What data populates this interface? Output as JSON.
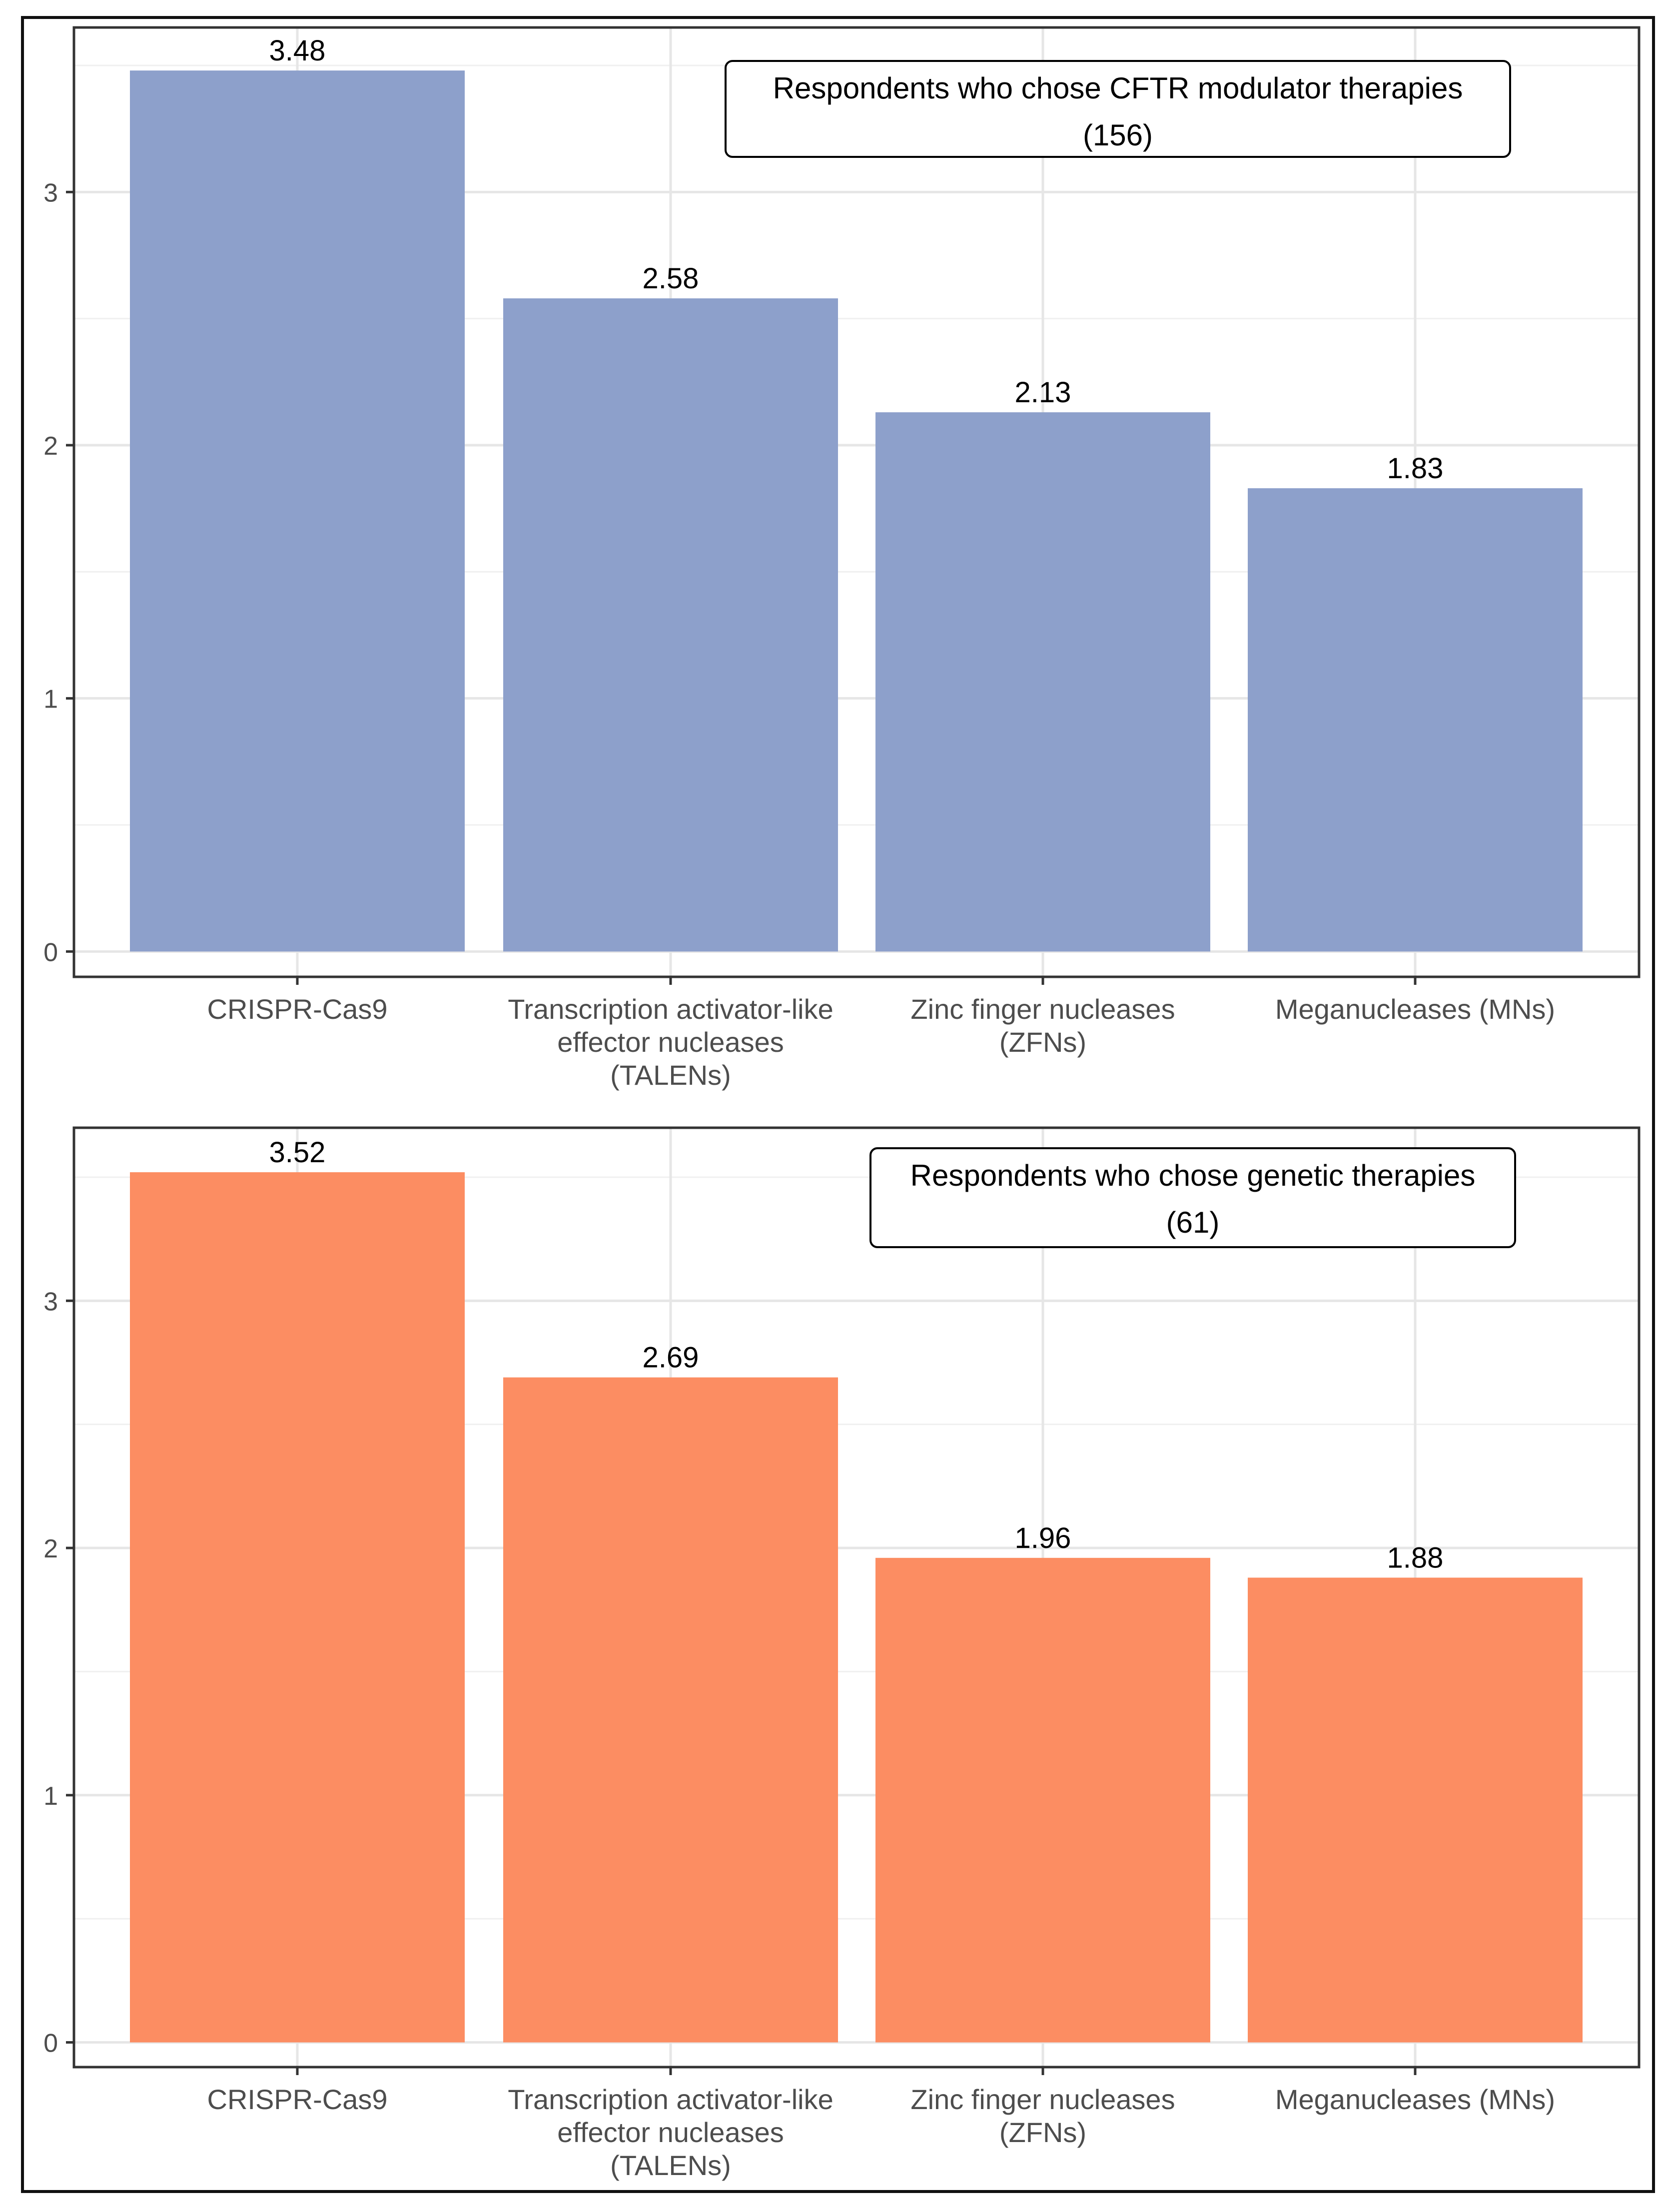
{
  "chart_data": [
    {
      "type": "bar",
      "categories": [
        "CRISPR-Cas9",
        "Transcription activator-like effector nucleases (TALENs)",
        "Zinc finger nucleases (ZFNs)",
        "Meganucleases (MNs)"
      ],
      "category_lines": [
        [
          "CRISPR-Cas9"
        ],
        [
          "Transcription activator-like",
          "effector nucleases",
          "(TALENs)"
        ],
        [
          "Zinc finger nucleases",
          "(ZFNs)"
        ],
        [
          "Meganucleases (MNs)"
        ]
      ],
      "values": [
        3.48,
        2.58,
        2.13,
        1.83
      ],
      "value_labels": [
        "3.48",
        "2.58",
        "2.13",
        "1.83"
      ],
      "annotation_lines": [
        "Respondents who chose CFTR modulator therapies",
        "(156)"
      ],
      "ylim": [
        -0.1,
        3.65
      ],
      "yticks": [
        0,
        1,
        2,
        3
      ],
      "color": "#8da0cb",
      "grid": true,
      "xlabel": "",
      "ylabel": ""
    },
    {
      "type": "bar",
      "categories": [
        "CRISPR-Cas9",
        "Transcription activator-like effector nucleases (TALENs)",
        "Zinc finger nucleases (ZFNs)",
        "Meganucleases (MNs)"
      ],
      "category_lines": [
        [
          "CRISPR-Cas9"
        ],
        [
          "Transcription activator-like",
          "effector nucleases",
          "(TALENs)"
        ],
        [
          "Zinc finger nucleases",
          "(ZFNs)"
        ],
        [
          "Meganucleases (MNs)"
        ]
      ],
      "values": [
        3.52,
        2.69,
        1.96,
        1.88
      ],
      "value_labels": [
        "3.52",
        "2.69",
        "1.96",
        "1.88"
      ],
      "annotation_lines": [
        "Respondents who chose genetic therapies",
        "(61)"
      ],
      "ylim": [
        -0.1,
        3.7
      ],
      "yticks": [
        0,
        1,
        2,
        3
      ],
      "color": "#fc8d62",
      "grid": true,
      "xlabel": "",
      "ylabel": ""
    }
  ]
}
